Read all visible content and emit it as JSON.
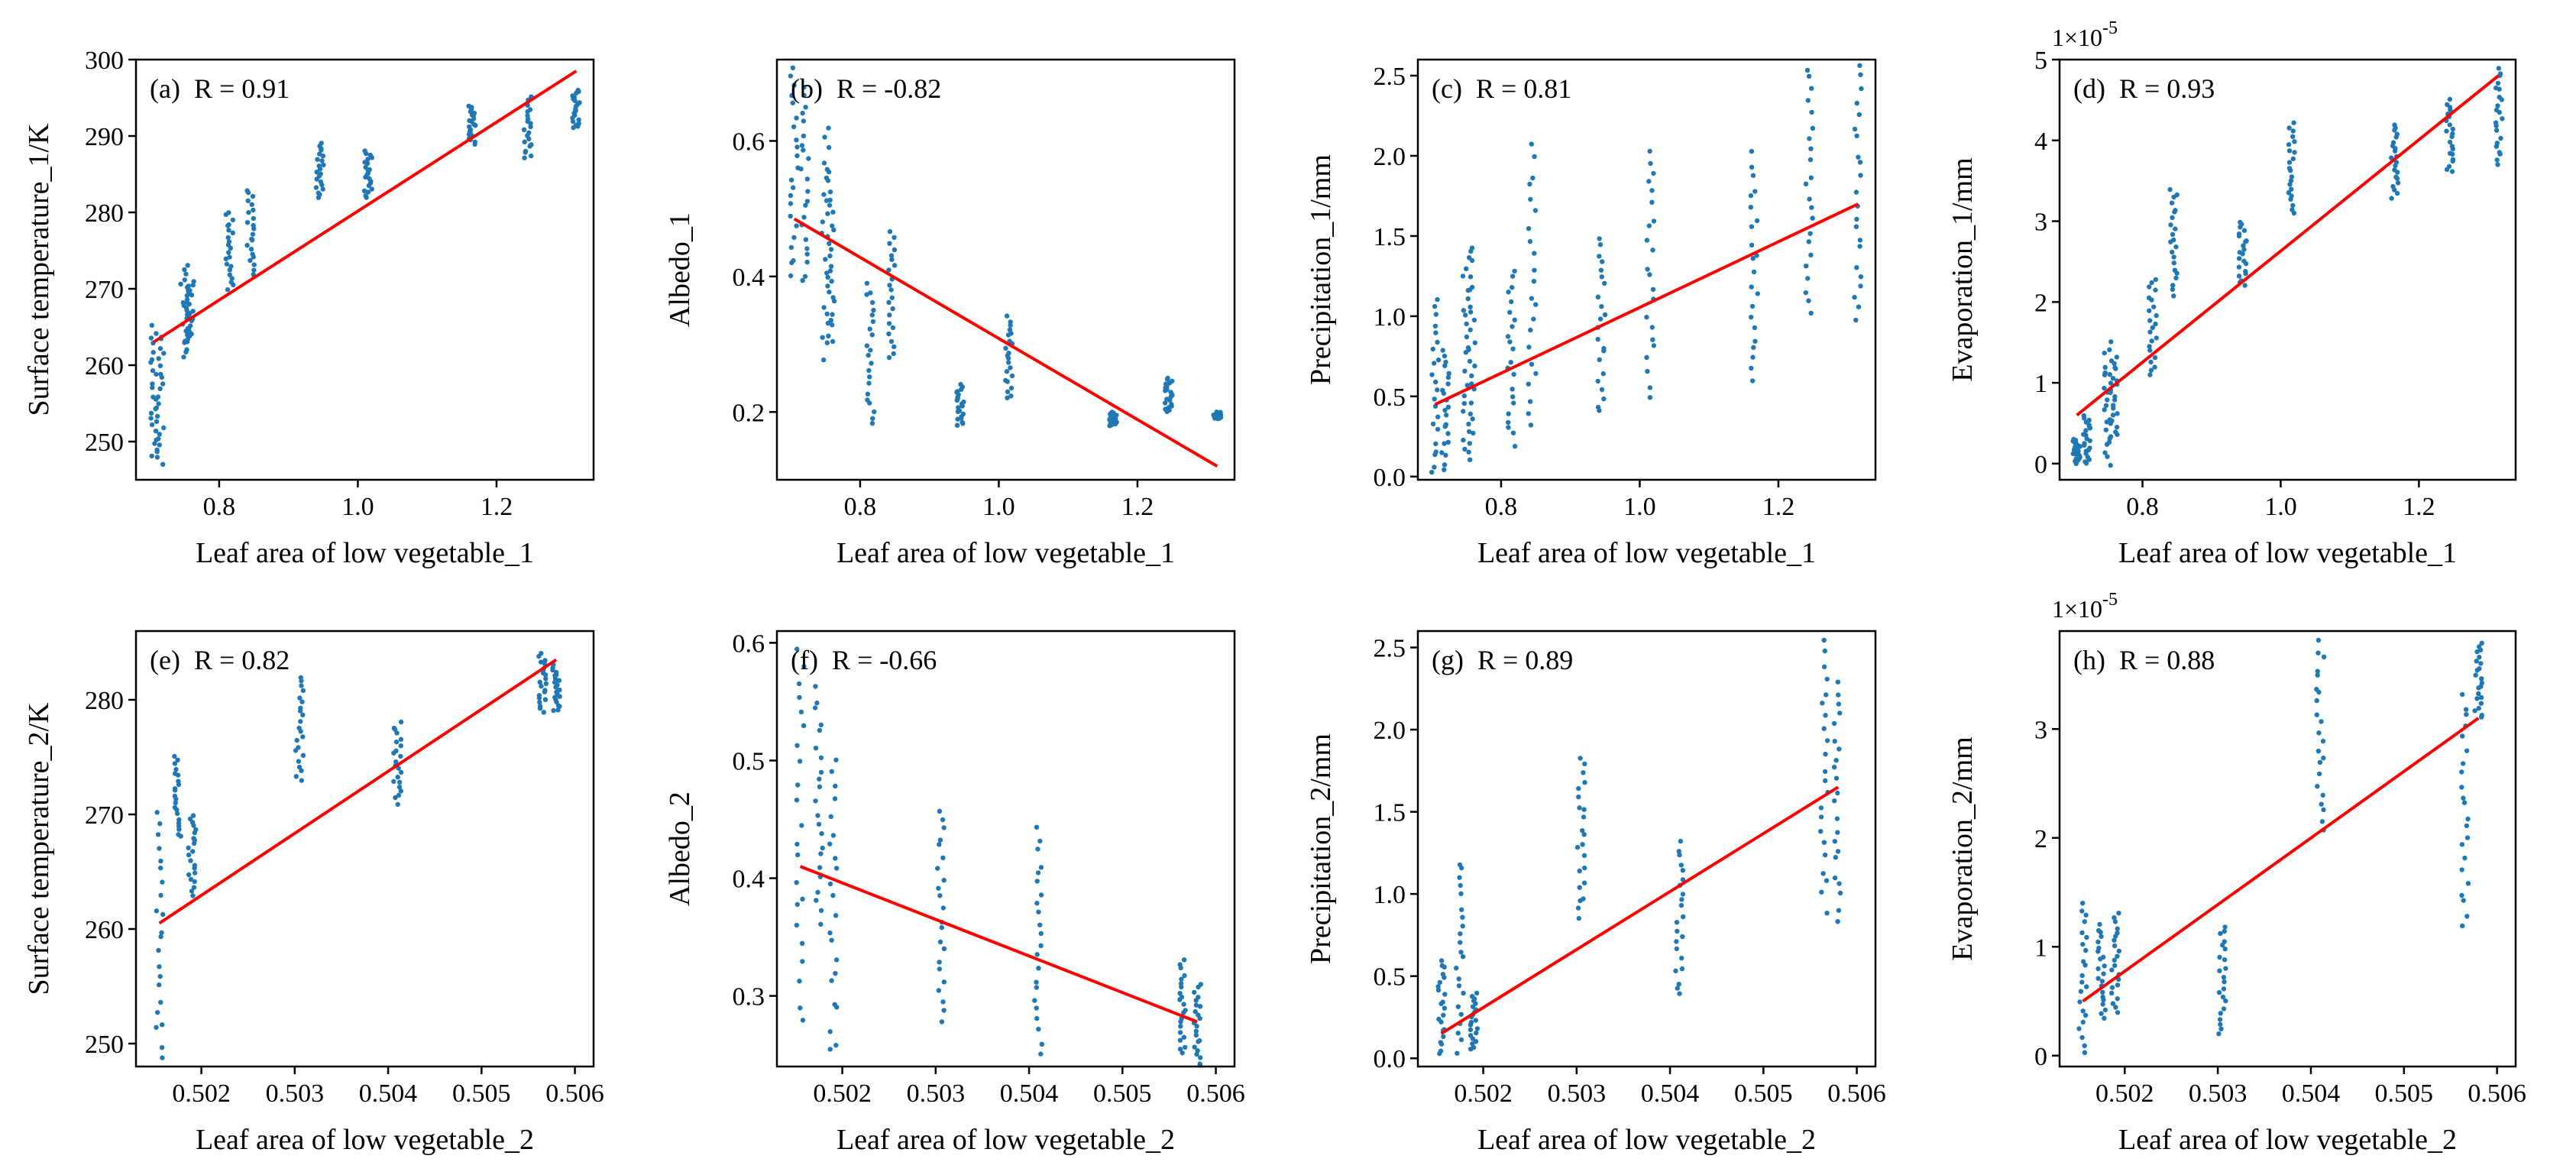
{
  "chart_data": [
    {
      "type": "scatter",
      "panel_label": "(a)",
      "annotation": "R = 0.91",
      "xlabel": "Leaf area of low vegetable_1",
      "ylabel": "Surface temperature_1/K",
      "xlim": [
        0.68,
        1.34
      ],
      "ylim": [
        245,
        300
      ],
      "xticks": [
        0.8,
        1.0,
        1.2
      ],
      "xtick_labels": [
        "0.8",
        "1.0",
        "1.2"
      ],
      "yticks": [
        250,
        260,
        270,
        280,
        290,
        300
      ],
      "ytick_labels": [
        "250",
        "260",
        "270",
        "280",
        "290",
        "300"
      ],
      "sci_label": "",
      "clusters": [
        {
          "x": 0.705,
          "ymin": 248,
          "ymax": 265
        },
        {
          "x": 0.715,
          "ymin": 247,
          "ymax": 264
        },
        {
          "x": 0.75,
          "ymin": 261,
          "ymax": 273
        },
        {
          "x": 0.758,
          "ymin": 263,
          "ymax": 271
        },
        {
          "x": 0.815,
          "ymin": 270,
          "ymax": 280
        },
        {
          "x": 0.845,
          "ymin": 272,
          "ymax": 283
        },
        {
          "x": 0.945,
          "ymin": 282,
          "ymax": 289
        },
        {
          "x": 1.015,
          "ymin": 282,
          "ymax": 288
        },
        {
          "x": 1.165,
          "ymin": 289,
          "ymax": 294
        },
        {
          "x": 1.245,
          "ymin": 287,
          "ymax": 295
        },
        {
          "x": 1.315,
          "ymin": 291,
          "ymax": 296
        }
      ],
      "fit": {
        "x": [
          0.705,
          1.315
        ],
        "y": [
          263,
          298.5
        ]
      }
    },
    {
      "type": "scatter",
      "panel_label": "(b)",
      "annotation": "R = -0.82",
      "xlabel": "Leaf area of low vegetable_1",
      "ylabel": "Albedo_1",
      "xlim": [
        0.68,
        1.34
      ],
      "ylim": [
        0.1,
        0.72
      ],
      "xticks": [
        0.8,
        1.0,
        1.2
      ],
      "xtick_labels": [
        "0.8",
        "1.0",
        "1.2"
      ],
      "yticks": [
        0.2,
        0.4,
        0.6
      ],
      "ytick_labels": [
        "0.2",
        "0.4",
        "0.6"
      ],
      "sci_label": "",
      "clusters": [
        {
          "x": 0.705,
          "ymin": 0.4,
          "ymax": 0.71
        },
        {
          "x": 0.72,
          "ymin": 0.39,
          "ymax": 0.68
        },
        {
          "x": 0.75,
          "ymin": 0.28,
          "ymax": 0.62
        },
        {
          "x": 0.758,
          "ymin": 0.3,
          "ymax": 0.55
        },
        {
          "x": 0.815,
          "ymin": 0.18,
          "ymax": 0.39
        },
        {
          "x": 0.845,
          "ymin": 0.28,
          "ymax": 0.47
        },
        {
          "x": 0.945,
          "ymin": 0.18,
          "ymax": 0.24
        },
        {
          "x": 1.015,
          "ymin": 0.22,
          "ymax": 0.34
        },
        {
          "x": 1.165,
          "ymin": 0.18,
          "ymax": 0.2
        },
        {
          "x": 1.245,
          "ymin": 0.2,
          "ymax": 0.25
        },
        {
          "x": 1.315,
          "ymin": 0.19,
          "ymax": 0.2
        }
      ],
      "fit": {
        "x": [
          0.705,
          1.315
        ],
        "y": [
          0.485,
          0.12
        ]
      }
    },
    {
      "type": "scatter",
      "panel_label": "(c)",
      "annotation": "R = 0.81",
      "xlabel": "Leaf area of low vegetable_1",
      "ylabel": "Precipitation_1/mm",
      "xlim": [
        0.68,
        1.34
      ],
      "ylim": [
        -0.02,
        2.6
      ],
      "xticks": [
        0.8,
        1.0,
        1.2
      ],
      "xtick_labels": [
        "0.8",
        "1.0",
        "1.2"
      ],
      "yticks": [
        0.0,
        0.5,
        1.0,
        1.5,
        2.0,
        2.5
      ],
      "ytick_labels": [
        "0.0",
        "0.5",
        "1.0",
        "1.5",
        "2.0",
        "2.5"
      ],
      "sci_label": "",
      "clusters": [
        {
          "x": 0.705,
          "ymin": 0.02,
          "ymax": 1.1
        },
        {
          "x": 0.72,
          "ymin": 0.05,
          "ymax": 0.8
        },
        {
          "x": 0.75,
          "ymin": 0.1,
          "ymax": 1.35
        },
        {
          "x": 0.758,
          "ymin": 0.15,
          "ymax": 1.45
        },
        {
          "x": 0.815,
          "ymin": 0.2,
          "ymax": 1.3
        },
        {
          "x": 0.845,
          "ymin": 0.3,
          "ymax": 2.05
        },
        {
          "x": 0.945,
          "ymin": 0.4,
          "ymax": 1.5
        },
        {
          "x": 1.015,
          "ymin": 0.5,
          "ymax": 2.05
        },
        {
          "x": 1.165,
          "ymin": 0.6,
          "ymax": 2.0
        },
        {
          "x": 1.245,
          "ymin": 1.0,
          "ymax": 2.55
        },
        {
          "x": 1.315,
          "ymin": 0.95,
          "ymax": 2.55
        }
      ],
      "fit": {
        "x": [
          0.705,
          1.315
        ],
        "y": [
          0.45,
          1.7
        ]
      }
    },
    {
      "type": "scatter",
      "panel_label": "(d)",
      "annotation": "R = 0.93",
      "xlabel": "Leaf area of low vegetable_1",
      "ylabel": "Evaporation_1/mm",
      "xlim": [
        0.68,
        1.34
      ],
      "ylim": [
        -0.2,
        5.0
      ],
      "xticks": [
        0.8,
        1.0,
        1.2
      ],
      "xtick_labels": [
        "0.8",
        "1.0",
        "1.2"
      ],
      "yticks": [
        0,
        1,
        2,
        3,
        4,
        5
      ],
      "ytick_labels": [
        "0",
        "1",
        "2",
        "3",
        "4",
        "5"
      ],
      "sci_label": "1×10",
      "sci_exponent": "-5",
      "clusters": [
        {
          "x": 0.705,
          "ymin": 0.0,
          "ymax": 0.3
        },
        {
          "x": 0.72,
          "ymin": 0.0,
          "ymax": 0.6
        },
        {
          "x": 0.75,
          "ymin": 0.0,
          "ymax": 1.5
        },
        {
          "x": 0.758,
          "ymin": 0.3,
          "ymax": 1.3
        },
        {
          "x": 0.815,
          "ymin": 1.1,
          "ymax": 2.3
        },
        {
          "x": 0.845,
          "ymin": 2.1,
          "ymax": 3.4
        },
        {
          "x": 0.945,
          "ymin": 2.2,
          "ymax": 3.0
        },
        {
          "x": 1.015,
          "ymin": 3.1,
          "ymax": 4.2
        },
        {
          "x": 1.165,
          "ymin": 3.3,
          "ymax": 4.2
        },
        {
          "x": 1.245,
          "ymin": 3.6,
          "ymax": 4.5
        },
        {
          "x": 1.315,
          "ymin": 3.7,
          "ymax": 4.9
        }
      ],
      "fit": {
        "x": [
          0.705,
          1.315
        ],
        "y": [
          0.6,
          4.8
        ]
      }
    },
    {
      "type": "scatter",
      "panel_label": "(e)",
      "annotation": "R = 0.82",
      "xlabel": "Leaf area of low vegetable_2",
      "ylabel": "Surface temperature_2/K",
      "xlim": [
        0.5013,
        0.5062
      ],
      "ylim": [
        248,
        286
      ],
      "xticks": [
        0.502,
        0.503,
        0.504,
        0.505,
        0.506
      ],
      "xtick_labels": [
        "0.502",
        "0.503",
        "0.504",
        "0.505",
        "0.506"
      ],
      "yticks": [
        250,
        260,
        270,
        280
      ],
      "ytick_labels": [
        "250",
        "260",
        "270",
        "280"
      ],
      "sci_label": "",
      "clusters": [
        {
          "x": 0.50155,
          "ymin": 249,
          "ymax": 270
        },
        {
          "x": 0.50175,
          "ymin": 268,
          "ymax": 275
        },
        {
          "x": 0.5019,
          "ymin": 263,
          "ymax": 270
        },
        {
          "x": 0.50305,
          "ymin": 273,
          "ymax": 282
        },
        {
          "x": 0.5041,
          "ymin": 271,
          "ymax": 278
        },
        {
          "x": 0.50565,
          "ymin": 279,
          "ymax": 284
        },
        {
          "x": 0.5058,
          "ymin": 279,
          "ymax": 283
        }
      ],
      "fit": {
        "x": [
          0.50155,
          0.5058
        ],
        "y": [
          260.5,
          283.5
        ]
      }
    },
    {
      "type": "scatter",
      "panel_label": "(f)",
      "annotation": "R = -0.66",
      "xlabel": "Leaf area of low vegetable_2",
      "ylabel": "Albedo_2",
      "xlim": [
        0.5013,
        0.5062
      ],
      "ylim": [
        0.24,
        0.61
      ],
      "xticks": [
        0.502,
        0.503,
        0.504,
        0.505,
        0.506
      ],
      "xtick_labels": [
        "0.502",
        "0.503",
        "0.504",
        "0.505",
        "0.506"
      ],
      "yticks": [
        0.3,
        0.4,
        0.5,
        0.6
      ],
      "ytick_labels": [
        "0.3",
        "0.4",
        "0.5",
        "0.6"
      ],
      "sci_label": "",
      "clusters": [
        {
          "x": 0.50155,
          "ymin": 0.28,
          "ymax": 0.6
        },
        {
          "x": 0.50175,
          "ymin": 0.36,
          "ymax": 0.56
        },
        {
          "x": 0.5019,
          "ymin": 0.25,
          "ymax": 0.5
        },
        {
          "x": 0.50305,
          "ymin": 0.28,
          "ymax": 0.46
        },
        {
          "x": 0.5041,
          "ymin": 0.25,
          "ymax": 0.44
        },
        {
          "x": 0.50565,
          "ymin": 0.25,
          "ymax": 0.33
        },
        {
          "x": 0.5058,
          "ymin": 0.24,
          "ymax": 0.31
        }
      ],
      "fit": {
        "x": [
          0.50155,
          0.5058
        ],
        "y": [
          0.41,
          0.278
        ]
      }
    },
    {
      "type": "scatter",
      "panel_label": "(g)",
      "annotation": "R = 0.89",
      "xlabel": "Leaf area of low vegetable_2",
      "ylabel": "Precipitation_2/mm",
      "xlim": [
        0.5013,
        0.5062
      ],
      "ylim": [
        -0.05,
        2.6
      ],
      "xticks": [
        0.502,
        0.503,
        0.504,
        0.505,
        0.506
      ],
      "xtick_labels": [
        "0.502",
        "0.503",
        "0.504",
        "0.505",
        "0.506"
      ],
      "yticks": [
        0.0,
        0.5,
        1.0,
        1.5,
        2.0,
        2.5
      ],
      "ytick_labels": [
        "0.0",
        "0.5",
        "1.0",
        "1.5",
        "2.0",
        "2.5"
      ],
      "sci_label": "",
      "clusters": [
        {
          "x": 0.50155,
          "ymin": 0.02,
          "ymax": 0.6
        },
        {
          "x": 0.50175,
          "ymin": 0.05,
          "ymax": 1.2
        },
        {
          "x": 0.5019,
          "ymin": 0.05,
          "ymax": 0.4
        },
        {
          "x": 0.50305,
          "ymin": 0.85,
          "ymax": 1.82
        },
        {
          "x": 0.5041,
          "ymin": 0.38,
          "ymax": 1.32
        },
        {
          "x": 0.50565,
          "ymin": 0.9,
          "ymax": 2.55
        },
        {
          "x": 0.5058,
          "ymin": 0.85,
          "ymax": 2.3
        }
      ],
      "fit": {
        "x": [
          0.50155,
          0.5058
        ],
        "y": [
          0.15,
          1.65
        ]
      }
    },
    {
      "type": "scatter",
      "panel_label": "(h)",
      "annotation": "R = 0.88",
      "xlabel": "Leaf area of low vegetable_2",
      "ylabel": "Evaporation_2/mm",
      "xlim": [
        0.5013,
        0.5062
      ],
      "ylim": [
        -0.1,
        3.9
      ],
      "xticks": [
        0.502,
        0.503,
        0.504,
        0.505,
        0.506
      ],
      "xtick_labels": [
        "0.502",
        "0.503",
        "0.504",
        "0.505",
        "0.506"
      ],
      "yticks": [
        0,
        1,
        2,
        3
      ],
      "ytick_labels": [
        "0",
        "1",
        "2",
        "3"
      ],
      "sci_label": "1×10",
      "sci_exponent": "-5",
      "clusters": [
        {
          "x": 0.50155,
          "ymin": 0.05,
          "ymax": 1.4
        },
        {
          "x": 0.50175,
          "ymin": 0.35,
          "ymax": 1.2
        },
        {
          "x": 0.5019,
          "ymin": 0.4,
          "ymax": 1.3
        },
        {
          "x": 0.50305,
          "ymin": 0.2,
          "ymax": 1.2
        },
        {
          "x": 0.5041,
          "ymin": 2.1,
          "ymax": 3.8
        },
        {
          "x": 0.50565,
          "ymin": 1.2,
          "ymax": 3.3
        },
        {
          "x": 0.5058,
          "ymin": 3.1,
          "ymax": 3.8
        }
      ],
      "fit": {
        "x": [
          0.50155,
          0.5058
        ],
        "y": [
          0.5,
          3.1
        ]
      }
    }
  ]
}
